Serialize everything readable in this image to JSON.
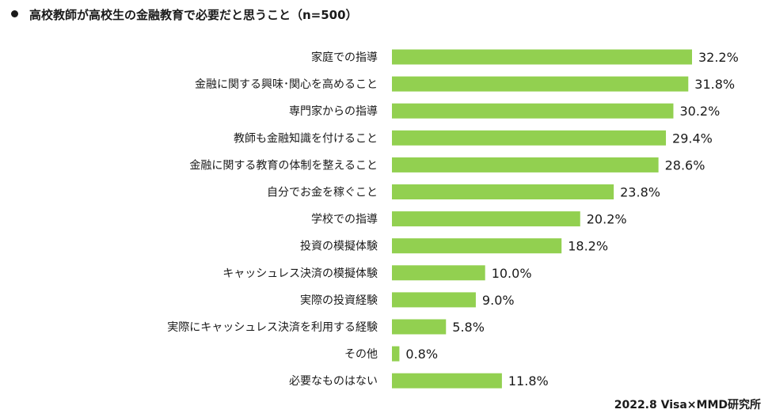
{
  "chart_data": {
    "type": "bar",
    "orientation": "horizontal",
    "title": "高校教師が高校生の金融教育で必要だと思うこと（n=500）",
    "categories": [
      "家庭での指導",
      "金融に関する興味･関心を高めること",
      "専門家からの指導",
      "教師も金融知識を付けること",
      "金融に関する教育の体制を整えること",
      "自分でお金を稼ぐこと",
      "学校での指導",
      "投資の模擬体験",
      "キャッシュレス決済の模擬体験",
      "実際の投資経験",
      "実際にキャッシュレス決済を利用する経験",
      "その他",
      "必要なものはない"
    ],
    "values": [
      32.2,
      31.8,
      30.2,
      29.4,
      28.6,
      23.8,
      20.2,
      18.2,
      10.0,
      9.0,
      5.8,
      0.8,
      11.8
    ],
    "value_labels": [
      "32.2%",
      "31.8%",
      "30.2%",
      "29.4%",
      "28.6%",
      "23.8%",
      "20.2%",
      "18.2%",
      "10.0%",
      "9.0%",
      "5.8%",
      "0.8%",
      "11.8%"
    ],
    "unit": "%",
    "bar_color": "#92d050",
    "grid": false,
    "legend": "none"
  },
  "source": "2022.8 Visa×MMD研究所"
}
